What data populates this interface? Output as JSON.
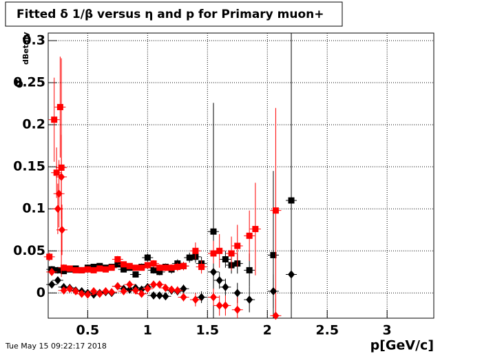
{
  "chart_data": {
    "type": "scatter",
    "title": "Fitted δ 1/β versus η and p for Primary muon+",
    "x_label": "p[GeV/c]",
    "y_label": "σ",
    "y_label_sub": "dBetaIy",
    "footer": "Tue May 15 09:22:17 2018",
    "xlim": [
      0.17,
      3.39
    ],
    "ylim": [
      -0.03,
      0.309
    ],
    "xticks": [
      0.5,
      1,
      1.5,
      2,
      2.5,
      3
    ],
    "yticks": [
      0,
      0.05,
      0.1,
      0.15,
      0.2,
      0.25,
      0.3
    ],
    "grid": true,
    "series": [
      {
        "marker": "square",
        "color": "#000000",
        "x": [
          0.2,
          0.25,
          0.3,
          0.35,
          0.4,
          0.45,
          0.5,
          0.55,
          0.6,
          0.65,
          0.7,
          0.75,
          0.8,
          0.85,
          0.9,
          0.95,
          1.0,
          1.05,
          1.1,
          1.15,
          1.2,
          1.25,
          1.3,
          1.35,
          1.4,
          1.45,
          1.55,
          1.65,
          1.7,
          1.75,
          1.85,
          2.05,
          2.2
        ],
        "values": [
          0.028,
          0.027,
          0.026,
          0.028,
          0.029,
          0.027,
          0.03,
          0.031,
          0.032,
          0.03,
          0.031,
          0.034,
          0.028,
          0.03,
          0.022,
          0.031,
          0.042,
          0.027,
          0.025,
          0.031,
          0.028,
          0.035,
          0.032,
          0.042,
          0.043,
          0.035,
          0.073,
          0.04,
          0.033,
          0.035,
          0.027,
          0.045,
          0.11
        ],
        "errors": [
          0.004,
          0.004,
          0.003,
          0.003,
          0.003,
          0.003,
          0.003,
          0.003,
          0.003,
          0.003,
          0.003,
          0.003,
          0.003,
          0.003,
          0.003,
          0.004,
          0.005,
          0.004,
          0.004,
          0.004,
          0.005,
          0.005,
          0.005,
          0.006,
          0.007,
          0.008,
          0.153,
          0.01,
          0.01,
          0.012,
          0.02,
          0.1,
          0.3
        ]
      },
      {
        "marker": "square",
        "color": "#ff0000",
        "x": [
          0.18,
          0.22,
          0.24,
          0.27,
          0.28,
          0.3,
          0.35,
          0.4,
          0.45,
          0.5,
          0.55,
          0.6,
          0.65,
          0.7,
          0.75,
          0.8,
          0.85,
          0.9,
          0.95,
          1.0,
          1.05,
          1.1,
          1.15,
          1.2,
          1.25,
          1.3,
          1.4,
          1.45,
          1.55,
          1.6,
          1.7,
          1.75,
          1.85,
          1.9,
          2.07
        ],
        "values": [
          0.043,
          0.206,
          0.143,
          0.221,
          0.149,
          0.03,
          0.029,
          0.027,
          0.027,
          0.028,
          0.027,
          0.029,
          0.028,
          0.03,
          0.04,
          0.034,
          0.032,
          0.03,
          0.03,
          0.033,
          0.035,
          0.03,
          0.03,
          0.03,
          0.031,
          0.032,
          0.05,
          0.031,
          0.047,
          0.05,
          0.047,
          0.056,
          0.068,
          0.076,
          0.098
        ],
        "errors": [
          0.005,
          0.05,
          0.03,
          0.06,
          0.13,
          0.004,
          0.003,
          0.003,
          0.003,
          0.003,
          0.003,
          0.003,
          0.003,
          0.003,
          0.004,
          0.003,
          0.003,
          0.003,
          0.003,
          0.004,
          0.004,
          0.004,
          0.004,
          0.004,
          0.005,
          0.005,
          0.01,
          0.008,
          0.015,
          0.02,
          0.02,
          0.025,
          0.03,
          0.055,
          0.122
        ]
      },
      {
        "marker": "diamond",
        "color": "#000000",
        "x": [
          0.2,
          0.25,
          0.3,
          0.35,
          0.4,
          0.45,
          0.5,
          0.55,
          0.6,
          0.65,
          0.7,
          0.75,
          0.8,
          0.85,
          0.9,
          0.95,
          1.0,
          1.05,
          1.1,
          1.15,
          1.2,
          1.25,
          1.3,
          1.45,
          1.55,
          1.6,
          1.65,
          1.75,
          1.85,
          2.05,
          2.2
        ],
        "values": [
          0.01,
          0.015,
          0.007,
          0.006,
          0.003,
          0.002,
          0.0,
          -0.002,
          0.0,
          0.001,
          0.0,
          0.008,
          0.005,
          0.004,
          0.006,
          0.004,
          0.007,
          -0.003,
          -0.003,
          -0.004,
          0.003,
          0.002,
          0.005,
          -0.005,
          0.025,
          0.015,
          0.007,
          0.0,
          -0.008,
          0.002,
          0.022
        ],
        "errors": [
          0.004,
          0.004,
          0.003,
          0.003,
          0.003,
          0.003,
          0.003,
          0.003,
          0.003,
          0.003,
          0.003,
          0.003,
          0.003,
          0.003,
          0.003,
          0.004,
          0.004,
          0.004,
          0.004,
          0.004,
          0.005,
          0.005,
          0.005,
          0.007,
          0.01,
          0.01,
          0.01,
          0.012,
          0.015,
          0.02,
          0.03
        ]
      },
      {
        "marker": "diamond",
        "color": "#ff0000",
        "x": [
          0.2,
          0.25,
          0.26,
          0.28,
          0.285,
          0.3,
          0.35,
          0.4,
          0.45,
          0.5,
          0.55,
          0.6,
          0.65,
          0.7,
          0.75,
          0.8,
          0.85,
          0.9,
          0.95,
          1.0,
          1.05,
          1.1,
          1.15,
          1.2,
          1.25,
          1.3,
          1.4,
          1.55,
          1.6,
          1.65,
          1.75,
          2.07
        ],
        "values": [
          0.025,
          0.1,
          0.118,
          0.138,
          0.075,
          0.003,
          0.005,
          0.002,
          -0.001,
          -0.002,
          0.002,
          -0.001,
          0.002,
          0.001,
          0.008,
          0.002,
          0.01,
          0.003,
          -0.001,
          0.005,
          0.01,
          0.01,
          0.006,
          0.004,
          0.003,
          -0.005,
          -0.008,
          -0.005,
          -0.015,
          -0.015,
          -0.02,
          -0.027
        ],
        "errors": [
          0.004,
          0.03,
          0.04,
          0.05,
          0.03,
          0.003,
          0.003,
          0.003,
          0.003,
          0.003,
          0.003,
          0.003,
          0.003,
          0.003,
          0.004,
          0.003,
          0.003,
          0.003,
          0.003,
          0.004,
          0.004,
          0.004,
          0.004,
          0.004,
          0.005,
          0.005,
          0.008,
          0.01,
          0.012,
          0.012,
          0.015,
          0.02
        ]
      }
    ]
  }
}
